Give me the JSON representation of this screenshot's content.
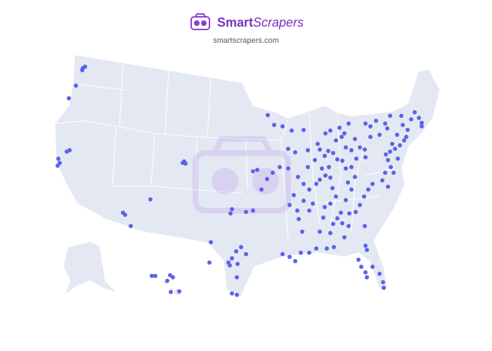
{
  "header": {
    "brand_bold": "Smart",
    "brand_italic": "Scrapers",
    "site": "smartscrapers.com"
  }
}
